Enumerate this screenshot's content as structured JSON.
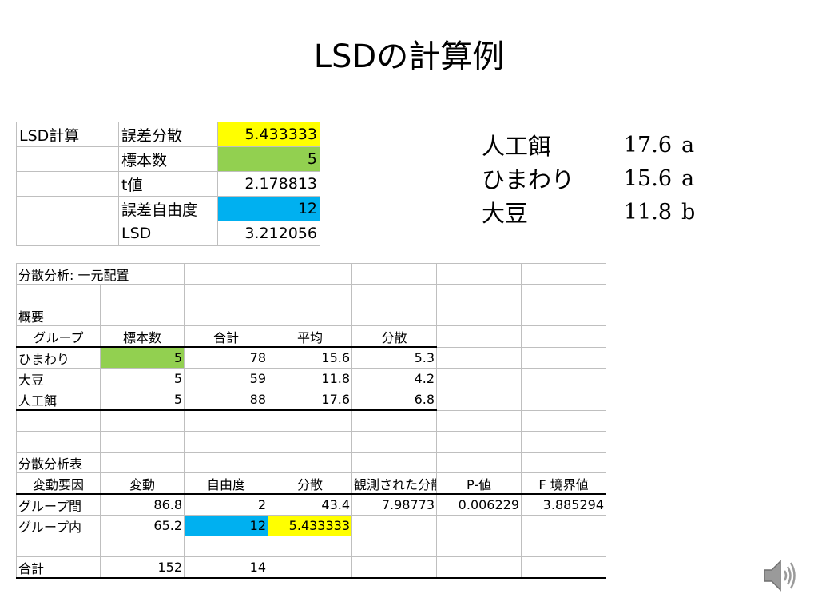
{
  "title": "LSDの計算例",
  "lsd_table": {
    "label": "LSD計算",
    "rows": [
      {
        "name": "誤差分散",
        "value": "5.433333"
      },
      {
        "name": "標本数",
        "value": "5"
      },
      {
        "name": "t値",
        "value": "2.178813"
      },
      {
        "name": "誤差自由度",
        "value": "12"
      },
      {
        "name": "LSD",
        "value": "3.212056"
      }
    ]
  },
  "results": [
    {
      "name": "人工餌",
      "value": "17.6",
      "group": "a"
    },
    {
      "name": "ひまわり",
      "value": "15.6",
      "group": "a"
    },
    {
      "name": "大豆",
      "value": "11.8",
      "group": "b"
    }
  ],
  "anova": {
    "title": "分散分析: 一元配置",
    "summary_label": "概要",
    "summary_headers": [
      "グループ",
      "標本数",
      "合計",
      "平均",
      "分散"
    ],
    "summary_rows": [
      [
        "ひまわり",
        "5",
        "78",
        "15.6",
        "5.3"
      ],
      [
        "大豆",
        "5",
        "59",
        "11.8",
        "4.2"
      ],
      [
        "人工餌",
        "5",
        "88",
        "17.6",
        "6.8"
      ]
    ],
    "table_label": "分散分析表",
    "table_headers": [
      "変動要因",
      "変動",
      "自由度",
      "分散",
      "観測された分散比",
      "P-値",
      "F 境界値"
    ],
    "table_rows": [
      [
        "グループ間",
        "86.8",
        "2",
        "43.4",
        "7.98773",
        "0.006229",
        "3.885294"
      ],
      [
        "グループ内",
        "65.2",
        "12",
        "5.433333",
        "",
        "",
        ""
      ]
    ],
    "total_row": [
      "合計",
      "152",
      "14"
    ]
  },
  "colors": {
    "yellow": "#ffff00",
    "green": "#92d050",
    "blue": "#00b0f0"
  },
  "icons": {
    "audio": "speaker-icon"
  }
}
